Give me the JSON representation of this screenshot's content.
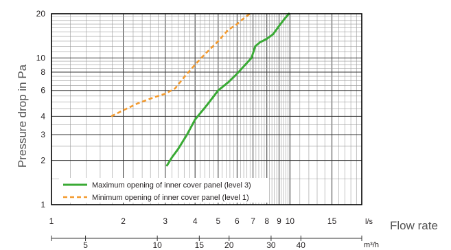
{
  "chart_data": {
    "type": "line",
    "x_scale": "log",
    "y_scale": "log",
    "xlim": [
      1,
      20
    ],
    "ylim": [
      1,
      20
    ],
    "grid": true,
    "legend_position": "bottom-left",
    "x_label": "Flow rate",
    "y_label": "Pressure drop in Pa",
    "x_unit_primary": "l/s",
    "x_unit_secondary": "m³/h",
    "x_ticks": [
      {
        "value": 1,
        "label": "1"
      },
      {
        "value": 2,
        "label": "2"
      },
      {
        "value": 3,
        "label": "3"
      },
      {
        "value": 4,
        "label": "4"
      },
      {
        "value": 5,
        "label": "5"
      },
      {
        "value": 6,
        "label": "6"
      },
      {
        "value": 7,
        "label": "7"
      },
      {
        "value": 8,
        "label": "8"
      },
      {
        "value": 9,
        "label": "9"
      },
      {
        "value": 10,
        "label": "10"
      },
      {
        "value": 15,
        "label": "15"
      }
    ],
    "x_secondary_ticks": [
      {
        "value": 5,
        "label": "5"
      },
      {
        "value": 10,
        "label": "10"
      },
      {
        "value": 15,
        "label": "15"
      },
      {
        "value": 20,
        "label": "20"
      },
      {
        "value": 30,
        "label": "30"
      },
      {
        "value": 40,
        "label": "40"
      }
    ],
    "y_ticks": [
      {
        "value": 1,
        "label": "1"
      },
      {
        "value": 2,
        "label": "2"
      },
      {
        "value": 3,
        "label": "3"
      },
      {
        "value": 4,
        "label": "4"
      },
      {
        "value": 6,
        "label": "6"
      },
      {
        "value": 8,
        "label": "8"
      },
      {
        "value": 10,
        "label": "10"
      },
      {
        "value": 20,
        "label": "20"
      }
    ],
    "series": [
      {
        "name": "Maximum opening of inner cover panel (level 3)",
        "color": "#3aaa35",
        "line_style": "solid",
        "points": [
          [
            3.05,
            1.85
          ],
          [
            3.2,
            2.1
          ],
          [
            3.4,
            2.4
          ],
          [
            3.7,
            3.0
          ],
          [
            4.0,
            3.8
          ],
          [
            4.5,
            4.8
          ],
          [
            5.0,
            6.0
          ],
          [
            5.5,
            6.8
          ],
          [
            6.0,
            7.8
          ],
          [
            6.5,
            9.0
          ],
          [
            6.9,
            10.0
          ],
          [
            7.15,
            12.0
          ],
          [
            7.5,
            12.8
          ],
          [
            8.0,
            13.5
          ],
          [
            8.5,
            14.5
          ],
          [
            9.0,
            16.5
          ],
          [
            9.5,
            18.5
          ],
          [
            9.9,
            20.0
          ]
        ]
      },
      {
        "name": "Minimum opening of inner cover panel (level 1)",
        "color": "#f39a2e",
        "line_style": "dashed",
        "points": [
          [
            1.78,
            4.0
          ],
          [
            2.0,
            4.4
          ],
          [
            2.3,
            4.9
          ],
          [
            2.7,
            5.4
          ],
          [
            3.0,
            5.7
          ],
          [
            3.3,
            6.2
          ],
          [
            3.6,
            7.4
          ],
          [
            4.0,
            9.0
          ],
          [
            4.4,
            10.6
          ],
          [
            5.0,
            13.0
          ],
          [
            5.5,
            15.5
          ],
          [
            6.0,
            17.0
          ],
          [
            6.5,
            19.0
          ],
          [
            6.8,
            20.0
          ]
        ]
      }
    ]
  }
}
